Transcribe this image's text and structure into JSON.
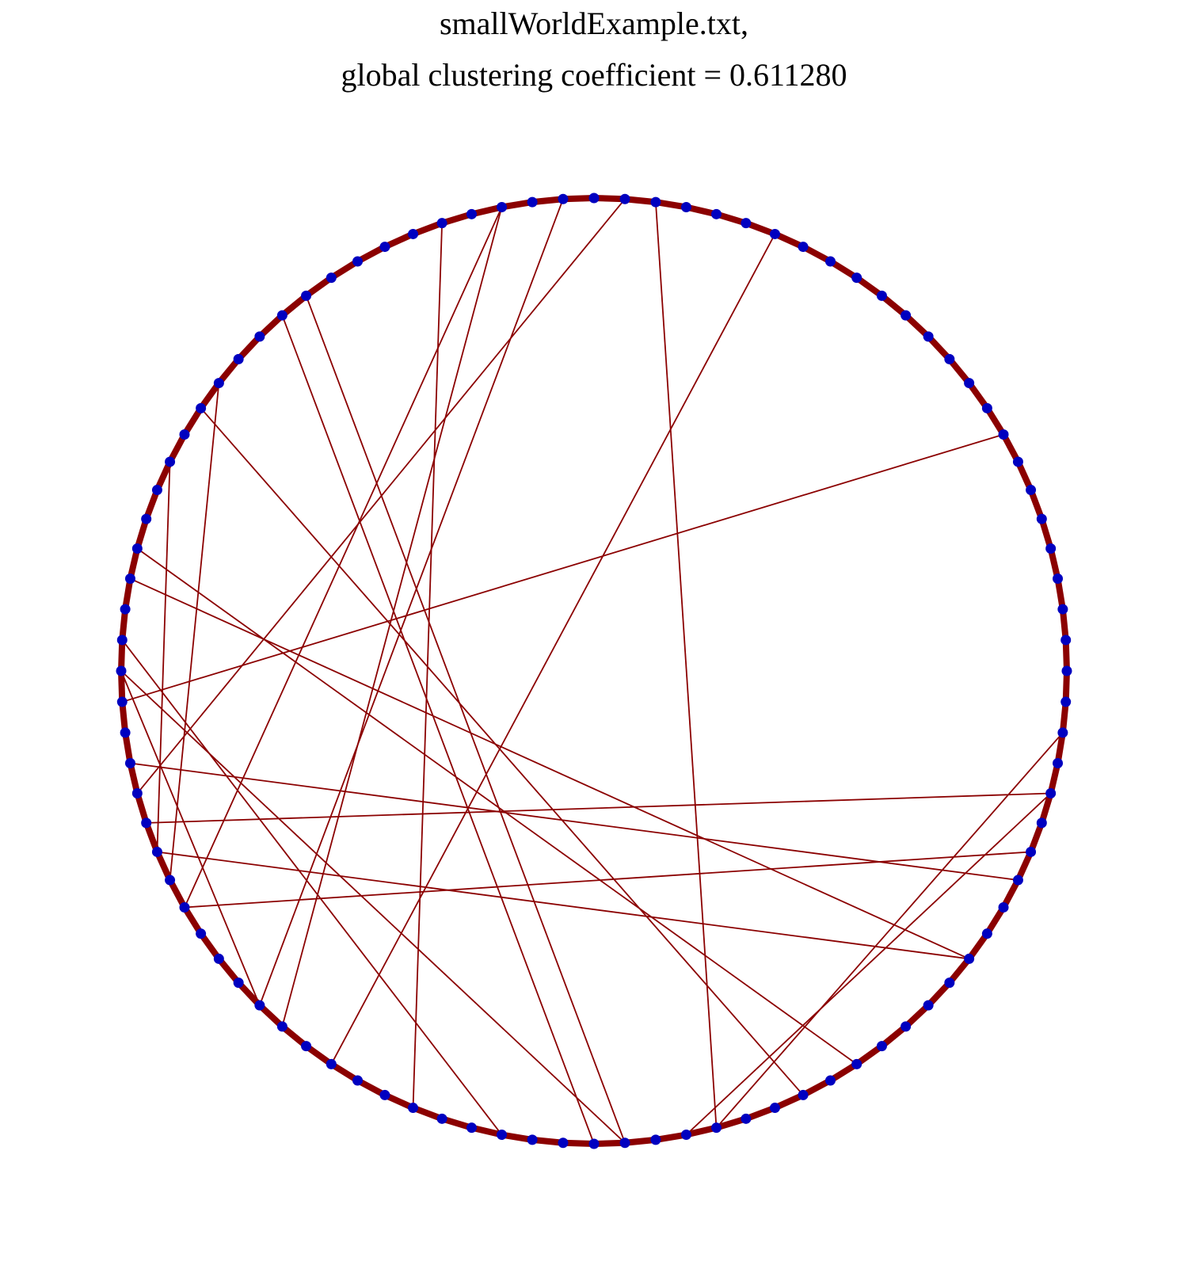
{
  "figure": {
    "title_line_1": "smallWorldExample.txt,",
    "title_line_2": "global clustering coefficient = 0.611280"
  },
  "graph": {
    "layout": "circular",
    "node_count": 96,
    "node_color": "#0000c0",
    "edge_color": "#8b0000",
    "ring_edges": "each node linked to its nearest neighbours around the circle",
    "shortcut_edges": [
      [
        2,
        20
      ],
      [
        4,
        21
      ],
      [
        4,
        43
      ],
      [
        6,
        40
      ],
      [
        7,
        45
      ],
      [
        10,
        42
      ],
      [
        10,
        51
      ],
      [
        15,
        52
      ],
      [
        17,
        57
      ],
      [
        20,
        74
      ],
      [
        23,
        48
      ],
      [
        23,
        62
      ],
      [
        24,
        61
      ],
      [
        27,
        49
      ],
      [
        30,
        67
      ],
      [
        33,
        78
      ],
      [
        35,
        69
      ],
      [
        36,
        48
      ],
      [
        36,
        71
      ],
      [
        40,
        69
      ],
      [
        41,
        58
      ],
      [
        42,
        55
      ],
      [
        44,
        73
      ],
      [
        47,
        88
      ]
    ]
  }
}
